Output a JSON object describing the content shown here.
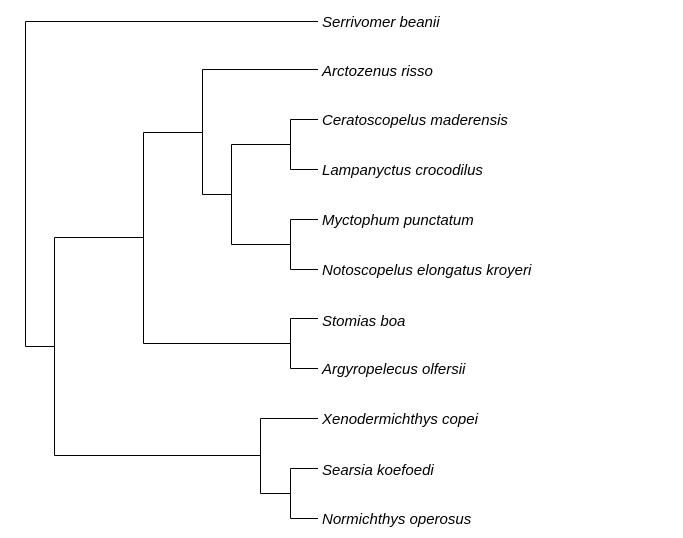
{
  "tree": {
    "tips": [
      "Serrivomer beanii",
      "Arctozenus risso",
      "Ceratoscopelus maderensis",
      "Lampanyctus crocodilus",
      "Myctophum punctatum",
      "Notoscopelus elongatus kroyeri",
      "Stomias boa",
      "Argyropelecus olfersii",
      "Xenodermichthys copei",
      "Searsia koefoedi",
      "Normichthys operosus"
    ],
    "topology": "(Serrivomer beanii,((Arctozenus risso,((Ceratoscopelus maderensis,Lampanyctus crocodilus),(Myctophum punctatum,Notoscopelus elongatus kroyeri))),(Stomias boa,Argyropelecus olfersii)),(Xenodermichthys copei,(Searsia koefoedi,Normichthys operosus)))"
  },
  "colors": {
    "background": "#ffffff",
    "branch": "#000000",
    "text": "#000000"
  }
}
